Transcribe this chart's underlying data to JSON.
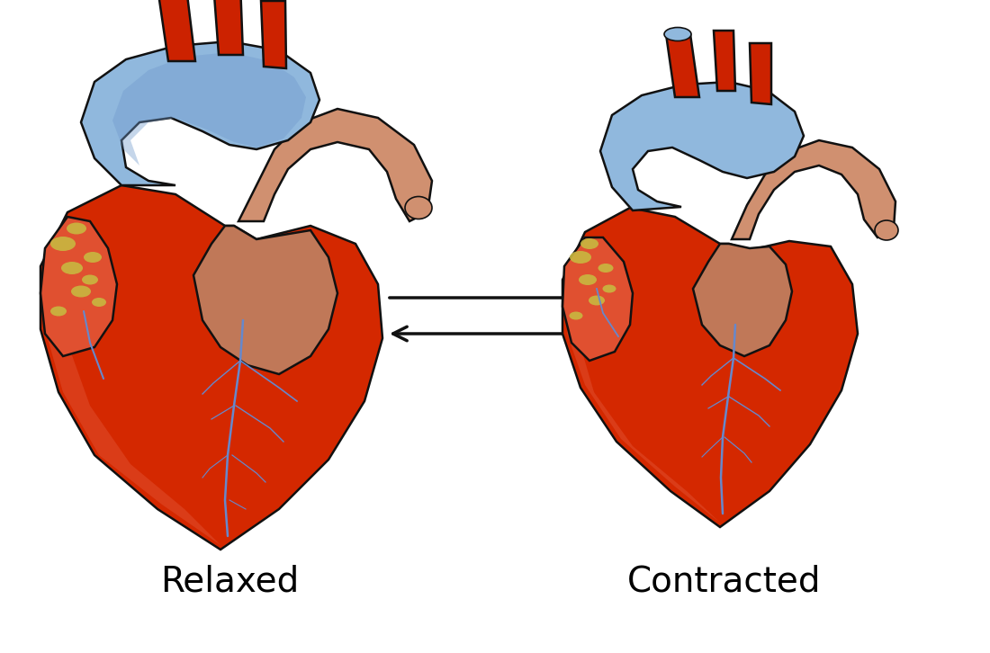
{
  "background_color": "#ffffff",
  "label_left": "Relaxed",
  "label_right": "Contracted",
  "label_fontsize": 28,
  "heart_red": "#CC2200",
  "heart_red_light": "#E05030",
  "heart_red_mid": "#D42800",
  "heart_dark_red": "#AA1500",
  "heart_medium": "#C82000",
  "aorta_brown": "#C07858",
  "aorta_brown_light": "#D09070",
  "blue_vessel": "#6688CC",
  "blue_vessel_light": "#90B8DD",
  "blue_vessel_mid": "#7099CC",
  "fat_yellow": "#C8B840",
  "outline_color": "#111111",
  "arrow_color": "#111111",
  "arrow_lw": 2.5,
  "lw": 1.8
}
